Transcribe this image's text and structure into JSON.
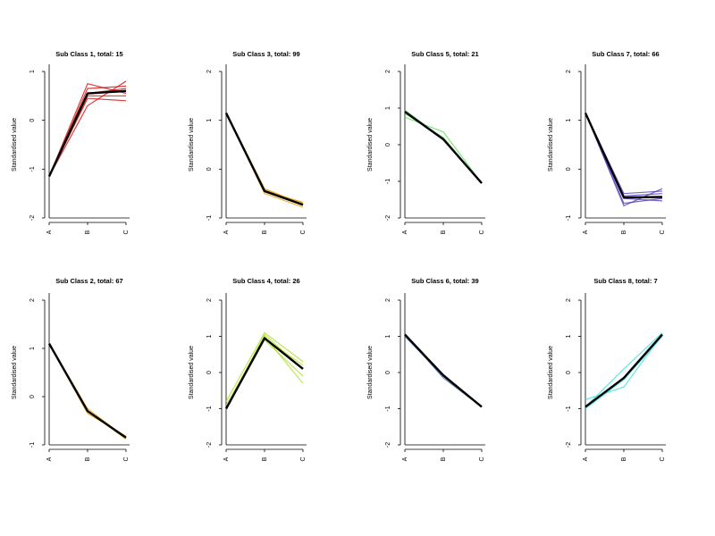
{
  "chart_data": [
    {
      "type": "line",
      "title": "Sub Class 1, total: 15",
      "ylabel": "Standardised value",
      "categories": [
        "A",
        "B",
        "C"
      ],
      "ylim": [
        -2,
        1
      ],
      "yticks": [
        -2,
        -1,
        0,
        1
      ],
      "color": "#cc0000",
      "series": [
        {
          "values": [
            -1.15,
            0.75,
            0.55
          ]
        },
        {
          "values": [
            -1.15,
            0.3,
            0.8
          ]
        },
        {
          "values": [
            -1.15,
            0.45,
            0.4
          ]
        },
        {
          "values": [
            -1.15,
            0.65,
            0.7
          ]
        },
        {
          "values": [
            -1.15,
            0.55,
            0.65
          ]
        },
        {
          "values": [
            -1.15,
            0.5,
            0.5
          ]
        }
      ],
      "mean": [
        -1.15,
        0.55,
        0.6
      ]
    },
    {
      "type": "line",
      "title": "Sub Class 3, total: 99",
      "ylabel": "Standardised value",
      "categories": [
        "A",
        "B",
        "C"
      ],
      "ylim": [
        -1,
        2
      ],
      "yticks": [
        -1,
        0,
        1,
        2
      ],
      "color": "#e69a00",
      "series": [
        {
          "values": [
            1.15,
            -0.4,
            -0.72
          ]
        },
        {
          "values": [
            1.15,
            -0.45,
            -0.68
          ]
        },
        {
          "values": [
            1.15,
            -0.5,
            -0.78
          ]
        },
        {
          "values": [
            1.15,
            -0.42,
            -0.7
          ]
        }
      ],
      "mean": [
        1.15,
        -0.45,
        -0.73
      ]
    },
    {
      "type": "line",
      "title": "Sub Class 5, total: 21",
      "ylabel": "Standardised value",
      "categories": [
        "A",
        "B",
        "C"
      ],
      "ylim": [
        -2,
        2
      ],
      "yticks": [
        -2,
        -1,
        0,
        1,
        2
      ],
      "color": "#55dd55",
      "series": [
        {
          "values": [
            0.75,
            0.35,
            -1.05
          ]
        },
        {
          "values": [
            0.95,
            0.15,
            -1.05
          ]
        },
        {
          "values": [
            0.85,
            0.2,
            -1.05
          ]
        }
      ],
      "mean": [
        0.9,
        0.15,
        -1.05
      ]
    },
    {
      "type": "line",
      "title": "Sub Class 7, total: 66",
      "ylabel": "Standardised value",
      "categories": [
        "A",
        "B",
        "C"
      ],
      "ylim": [
        -1,
        2
      ],
      "yticks": [
        -1,
        0,
        1,
        2
      ],
      "color": "#4433bb",
      "series": [
        {
          "values": [
            1.15,
            -0.75,
            -0.4
          ]
        },
        {
          "values": [
            1.15,
            -0.6,
            -0.65
          ]
        },
        {
          "values": [
            1.15,
            -0.55,
            -0.5
          ]
        },
        {
          "values": [
            1.15,
            -0.7,
            -0.6
          ]
        },
        {
          "values": [
            1.15,
            -0.5,
            -0.45
          ]
        }
      ],
      "mean": [
        1.15,
        -0.58,
        -0.57
      ]
    },
    {
      "type": "line",
      "title": "Sub Class 2, total: 67",
      "ylabel": "Standardised value",
      "categories": [
        "A",
        "B",
        "C"
      ],
      "ylim": [
        -1,
        2
      ],
      "yticks": [
        -1,
        0,
        1,
        2
      ],
      "color": "#e69a00",
      "series": [
        {
          "values": [
            1.1,
            -0.25,
            -0.85
          ]
        },
        {
          "values": [
            1.1,
            -0.35,
            -0.82
          ]
        },
        {
          "values": [
            1.1,
            -0.3,
            -0.88
          ]
        }
      ],
      "mean": [
        1.1,
        -0.3,
        -0.85
      ]
    },
    {
      "type": "line",
      "title": "Sub Class 4, total: 26",
      "ylabel": "Standardised value",
      "categories": [
        "A",
        "B",
        "C"
      ],
      "ylim": [
        -2,
        2
      ],
      "yticks": [
        -2,
        -1,
        0,
        1,
        2
      ],
      "color": "#aadd22",
      "series": [
        {
          "values": [
            -0.8,
            1.1,
            0.3
          ]
        },
        {
          "values": [
            -1.0,
            1.0,
            -0.3
          ]
        },
        {
          "values": [
            -1.0,
            0.9,
            -0.1
          ]
        },
        {
          "values": [
            -0.9,
            0.95,
            0.2
          ]
        },
        {
          "values": [
            -1.0,
            1.05,
            0.1
          ]
        }
      ],
      "mean": [
        -1.0,
        0.95,
        0.1
      ]
    },
    {
      "type": "line",
      "title": "Sub Class 6, total: 39",
      "ylabel": "Standardised value",
      "categories": [
        "A",
        "B",
        "C"
      ],
      "ylim": [
        -2,
        2
      ],
      "yticks": [
        -2,
        -1,
        0,
        1,
        2
      ],
      "color": "#3366aa",
      "series": [
        {
          "values": [
            1.05,
            -0.15,
            -0.95
          ]
        },
        {
          "values": [
            1.05,
            -0.05,
            -0.95
          ]
        },
        {
          "values": [
            1.0,
            -0.1,
            -0.95
          ]
        }
      ],
      "mean": [
        1.05,
        -0.08,
        -0.95
      ]
    },
    {
      "type": "line",
      "title": "Sub Class 8, total: 7",
      "ylabel": "Standardised value",
      "categories": [
        "A",
        "B",
        "C"
      ],
      "ylim": [
        -2,
        2
      ],
      "yticks": [
        -2,
        -1,
        0,
        1,
        2
      ],
      "color": "#33dddd",
      "series": [
        {
          "values": [
            -0.75,
            -0.4,
            1.05
          ]
        },
        {
          "values": [
            -0.95,
            0.1,
            1.1
          ]
        },
        {
          "values": [
            -1.0,
            -0.2,
            1.0
          ]
        }
      ],
      "mean": [
        -0.95,
        -0.15,
        1.05
      ]
    }
  ]
}
